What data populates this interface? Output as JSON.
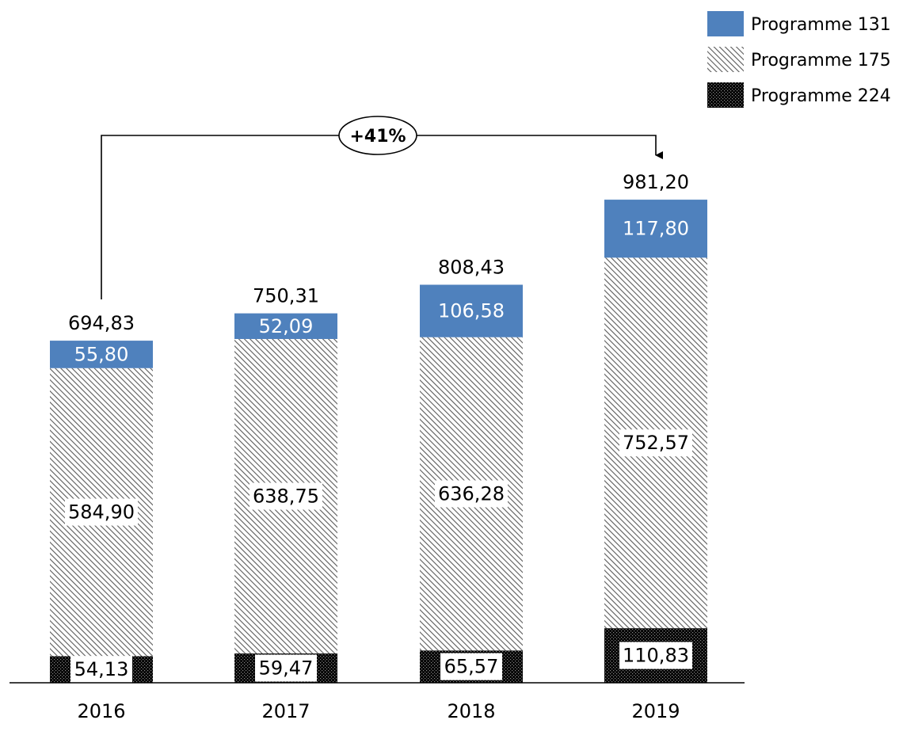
{
  "chart_data": {
    "type": "bar",
    "stacked": true,
    "categories": [
      "2016",
      "2017",
      "2018",
      "2019"
    ],
    "series": [
      {
        "name": "Programme 224",
        "values": [
          "54,13",
          "59,47",
          "65,57",
          "110,83"
        ],
        "pattern": "dense-dots",
        "color": "#000000"
      },
      {
        "name": "Programme 175",
        "values": [
          "584,90",
          "638,75",
          "636,28",
          "752,57"
        ],
        "pattern": "diagonal-hatch",
        "color": "#6e6e6e"
      },
      {
        "name": "Programme 131",
        "values": [
          "55,80",
          "52,09",
          "106,58",
          "117,80"
        ],
        "pattern": "solid",
        "color": "#4f81bd"
      }
    ],
    "totals": [
      "694,83",
      "750,31",
      "808,43",
      "981,20"
    ],
    "annotation": {
      "text": "+41%",
      "from": "2016",
      "to": "2019"
    },
    "legend_position": "top-right",
    "grid": false
  }
}
